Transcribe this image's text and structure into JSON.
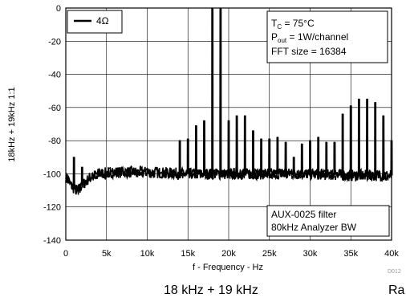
{
  "chart_data": {
    "type": "line",
    "xlabel": "f - Frequency - Hz",
    "ylabel": "18kHz + 19kHz 1:1",
    "xlim": [
      0,
      40000
    ],
    "ylim": [
      -140,
      0
    ],
    "x_ticks": [
      0,
      5000,
      10000,
      15000,
      20000,
      25000,
      30000,
      35000,
      40000
    ],
    "x_tick_labels": [
      "0",
      "5k",
      "10k",
      "15k",
      "20k",
      "25k",
      "30k",
      "35k",
      "40k"
    ],
    "y_ticks": [
      0,
      -20,
      -40,
      -60,
      -80,
      -100,
      -120,
      -140
    ],
    "y_tick_labels": [
      "0",
      "-20",
      "-40",
      "-60",
      "-80",
      "-100",
      "-120",
      "-140"
    ],
    "grid": true,
    "legend_position": "top-left",
    "series": [
      {
        "name": "4Ω",
        "color": "#000000",
        "noise_floor": [
          [
            0,
            -102
          ],
          [
            500,
            -106
          ],
          [
            1000,
            -109
          ],
          [
            1500,
            -110
          ],
          [
            2000,
            -107
          ],
          [
            3000,
            -102
          ],
          [
            4000,
            -100
          ],
          [
            6000,
            -99
          ],
          [
            10000,
            -99
          ],
          [
            15000,
            -100
          ],
          [
            20000,
            -100
          ],
          [
            25000,
            -100
          ],
          [
            30000,
            -100
          ],
          [
            35000,
            -101
          ],
          [
            40000,
            -101
          ]
        ],
        "peaks": [
          [
            1000,
            -90
          ],
          [
            2000,
            -96
          ],
          [
            18000,
            0
          ],
          [
            19000,
            0
          ],
          [
            14000,
            -80
          ],
          [
            15000,
            -79
          ],
          [
            16000,
            -71
          ],
          [
            17000,
            -68
          ],
          [
            20000,
            -68
          ],
          [
            21000,
            -65
          ],
          [
            22000,
            -65
          ],
          [
            23000,
            -74
          ],
          [
            24000,
            -79
          ],
          [
            25000,
            -79
          ],
          [
            26000,
            -78
          ],
          [
            27000,
            -81
          ],
          [
            28000,
            -90
          ],
          [
            29000,
            -82
          ],
          [
            30000,
            -80
          ],
          [
            31000,
            -78
          ],
          [
            32000,
            -81
          ],
          [
            33000,
            -81
          ],
          [
            34000,
            -64
          ],
          [
            35000,
            -59
          ],
          [
            36000,
            -55
          ],
          [
            37000,
            -55
          ],
          [
            38000,
            -57
          ],
          [
            39000,
            -65
          ],
          [
            40000,
            -80
          ]
        ]
      }
    ],
    "annotations": {
      "conditions": [
        "T",
        "C",
        " = 75°C",
        "P",
        "out",
        " = 1W/channel",
        "FFT size = 16384"
      ],
      "filter": [
        "AUX-0025 filter",
        "80kHz Analyzer BW"
      ]
    }
  },
  "caption": "18 kHz + 19 kHz",
  "caption_cut": "Ra",
  "figure_id": "D012"
}
